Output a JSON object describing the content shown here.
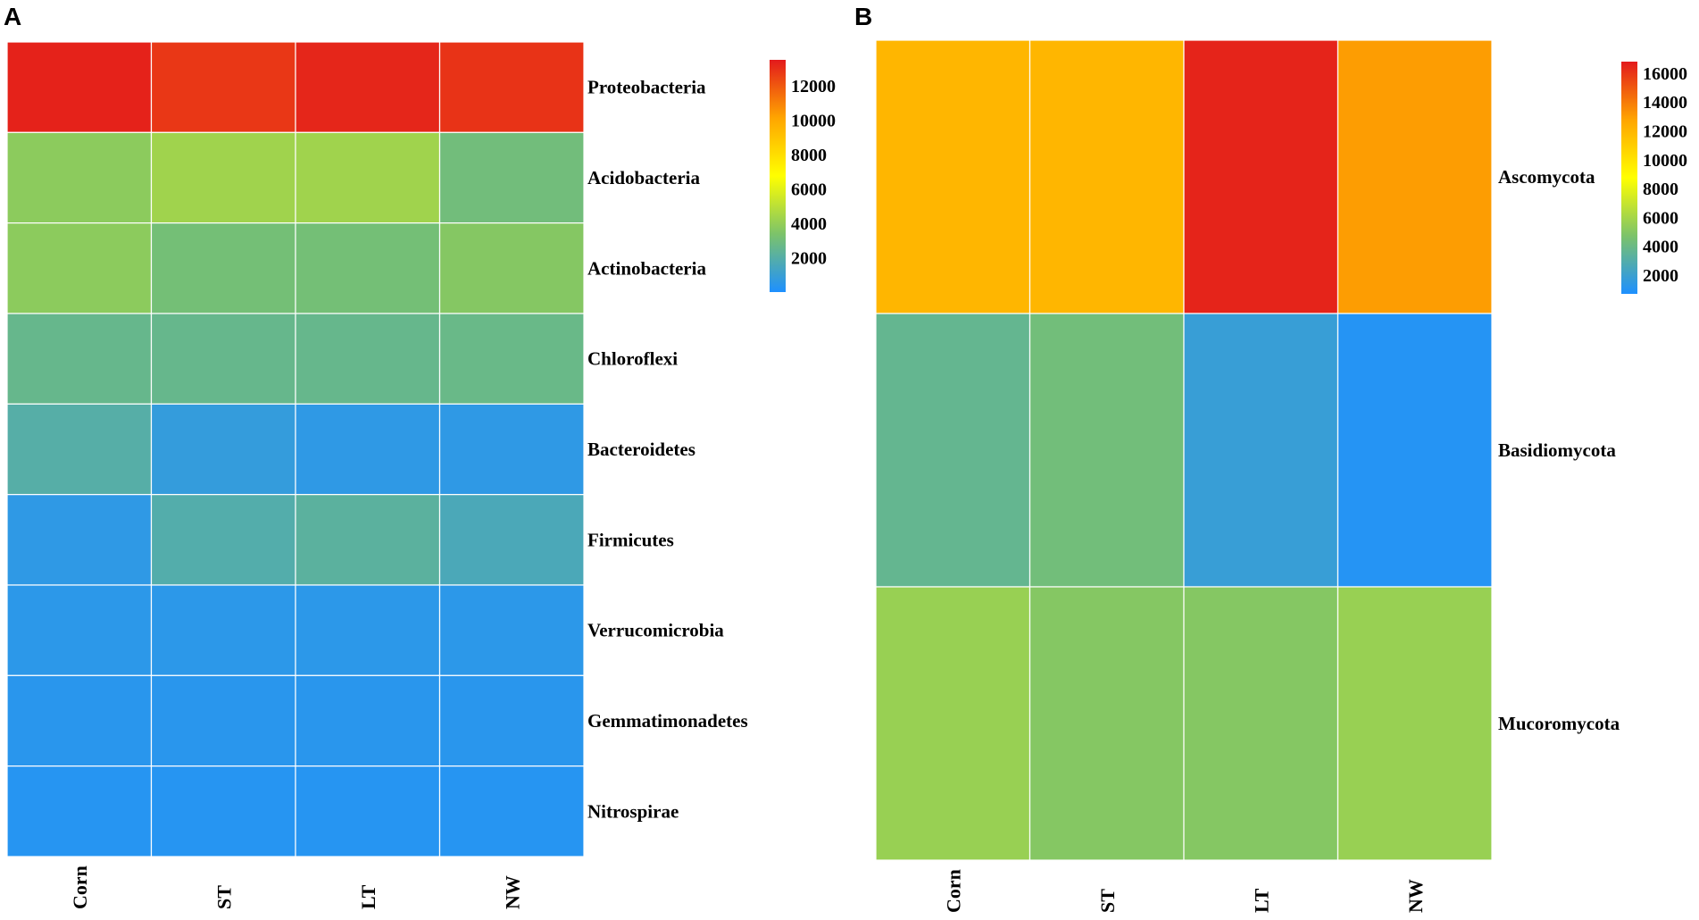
{
  "chart_data": [
    {
      "type": "heatmap",
      "panel_label": "A",
      "columns": [
        "Corn",
        "ST",
        "LT",
        "NW"
      ],
      "rows": [
        "Proteobacteria",
        "Acidobacteria",
        "Actinobacteria",
        "Chloroflexi",
        "Bacteroidetes",
        "Firmicutes",
        "Verrucomicrobia",
        "Gemmatimonadetes",
        "Nitrospirae"
      ],
      "values": [
        [
          13300,
          12800,
          13200,
          12900
        ],
        [
          3800,
          4300,
          4300,
          3000
        ],
        [
          3800,
          3100,
          3100,
          3600
        ],
        [
          2600,
          2600,
          2600,
          2700
        ],
        [
          2000,
          800,
          600,
          600
        ],
        [
          600,
          1900,
          2200,
          1600
        ],
        [
          500,
          500,
          500,
          500
        ],
        [
          400,
          400,
          400,
          400
        ],
        [
          300,
          300,
          300,
          300
        ]
      ],
      "colorbar": {
        "min": 0,
        "max": 13500,
        "ticks": [
          2000,
          4000,
          6000,
          8000,
          10000,
          12000
        ],
        "tick_labels": [
          "2000",
          "4000",
          "6000",
          "8000",
          "10000",
          "12000"
        ],
        "colors": [
          "#1E90FF",
          "#7CC36A",
          "#FFFF00",
          "#FFA500",
          "#E31A1C"
        ]
      }
    },
    {
      "type": "heatmap",
      "panel_label": "B",
      "columns": [
        "Corn",
        "ST",
        "LT",
        "NW"
      ],
      "rows": [
        "Ascomycota",
        "Basidiomycota",
        "Mucoromycota"
      ],
      "values": [
        [
          12000,
          12000,
          16500,
          13000
        ],
        [
          3700,
          4300,
          1800,
          1000
        ],
        [
          5600,
          5000,
          5000,
          5600
        ]
      ],
      "colorbar": {
        "min": 700,
        "max": 16800,
        "ticks": [
          2000,
          4000,
          6000,
          8000,
          10000,
          12000,
          14000,
          16000
        ],
        "tick_labels": [
          "2000",
          "4000",
          "6000",
          "8000",
          "10000",
          "12000",
          "14000",
          "16000"
        ],
        "colors": [
          "#1E90FF",
          "#7CC36A",
          "#FFFF00",
          "#FFA500",
          "#E31A1C"
        ]
      }
    }
  ]
}
